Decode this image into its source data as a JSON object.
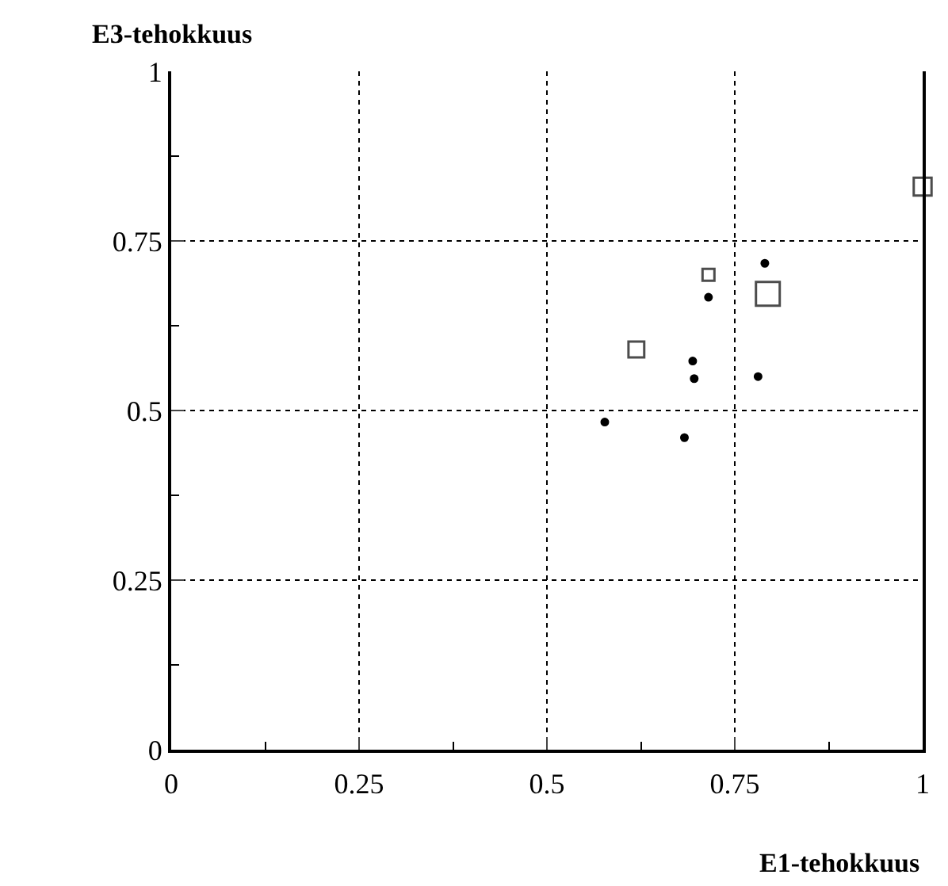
{
  "chart_data": {
    "type": "scatter",
    "xlabel": "E1-tehokkuus",
    "ylabel": "E3-tehokkuus",
    "xlim": [
      0,
      1
    ],
    "ylim": [
      0,
      1
    ],
    "xticks": [
      0,
      {
        "value": 0.125,
        "label": null
      },
      0.25,
      {
        "value": 0.375,
        "label": null
      },
      0.5,
      {
        "value": 0.625,
        "label": null
      },
      0.75,
      {
        "value": 0.875,
        "label": null
      },
      1
    ],
    "yticks": [
      0,
      {
        "value": 0.125,
        "label": null
      },
      0.25,
      {
        "value": 0.375,
        "label": null
      },
      0.5,
      {
        "value": 0.625,
        "label": null
      },
      0.75,
      {
        "value": 0.875,
        "label": null
      },
      1
    ],
    "grid": true,
    "line_style": "dotted",
    "series": [
      {
        "marker": "circle",
        "color": "#000000",
        "x": [
          0.79,
          0.715,
          0.694,
          0.696,
          0.781,
          0.577,
          0.683
        ],
        "values": [
          0.717,
          0.667,
          0.573,
          0.547,
          0.55,
          0.483,
          0.46
        ]
      },
      {
        "type": "bubble",
        "marker": "square",
        "color": "#000000",
        "x": [
          1.0,
          0.715,
          0.794,
          0.619
        ],
        "values": [
          0.83,
          0.7,
          0.672,
          0.59
        ],
        "sizes": [
          0.56,
          0.25,
          1,
          0.44
        ]
      }
    ]
  }
}
